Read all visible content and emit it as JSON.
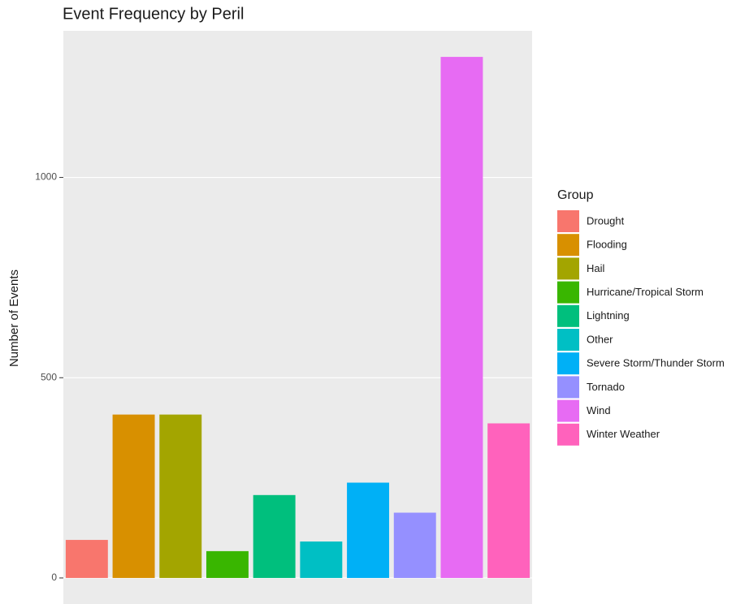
{
  "chart_data": {
    "type": "bar",
    "title": "Event Frequency by Peril",
    "y_label": "Number of Events",
    "legend_title": "Group",
    "categories": [
      "Drought",
      "Flooding",
      "Hail",
      "Hurricane/Tropical Storm",
      "Lightning",
      "Other",
      "Severe Storm/Thunder Storm",
      "Tornado",
      "Wind",
      "Winter Weather"
    ],
    "values": [
      95,
      408,
      408,
      67,
      207,
      91,
      238,
      163,
      1301,
      386
    ],
    "colors": [
      "#F8766D",
      "#D89000",
      "#A3A500",
      "#39B600",
      "#00BF7D",
      "#00BFC4",
      "#00B0F6",
      "#9590FF",
      "#E76BF3",
      "#FF62BC"
    ],
    "ylim": [
      -65,
      1366
    ],
    "yticks": [
      0,
      500,
      1000
    ],
    "grid": true,
    "legend": "right"
  }
}
